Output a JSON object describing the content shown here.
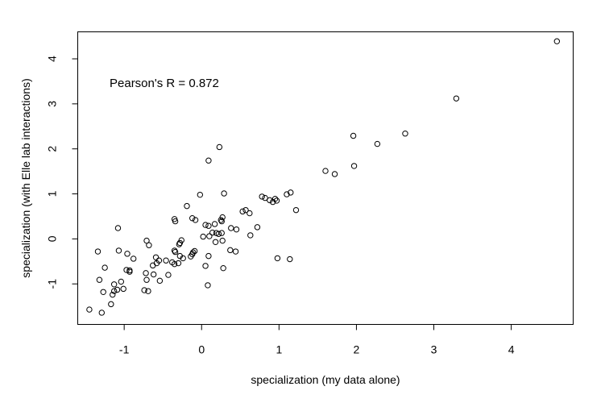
{
  "chart_data": {
    "type": "scatter",
    "title": "",
    "xlabel": "specialization (my data alone)",
    "ylabel": "specialization (with Elle lab interactions)",
    "annotation": "Pearson's R = 0.872",
    "xlim": [
      -1.6,
      4.8
    ],
    "ylim": [
      -1.9,
      4.6
    ],
    "x_ticks": [
      -1,
      0,
      1,
      2,
      3,
      4
    ],
    "y_ticks": [
      -1,
      0,
      1,
      2,
      3,
      4
    ],
    "x_tick_labels": [
      "-1",
      "0",
      "1",
      "2",
      "3",
      "4"
    ],
    "y_tick_labels": [
      "-1",
      "0",
      "1",
      "2",
      "3",
      "4"
    ],
    "marker": "open-circle",
    "grid": false,
    "points": [
      [
        4.59,
        4.39
      ],
      [
        3.29,
        3.12
      ],
      [
        2.63,
        2.34
      ],
      [
        2.27,
        2.11
      ],
      [
        1.96,
        2.29
      ],
      [
        1.97,
        1.62
      ],
      [
        1.6,
        1.51
      ],
      [
        1.72,
        1.44
      ],
      [
        0.23,
        2.04
      ],
      [
        0.09,
        1.74
      ],
      [
        1.15,
        1.03
      ],
      [
        1.1,
        0.99
      ],
      [
        0.95,
        0.89
      ],
      [
        0.78,
        0.94
      ],
      [
        0.82,
        0.91
      ],
      [
        0.88,
        0.86
      ],
      [
        0.92,
        0.82
      ],
      [
        0.97,
        0.85
      ],
      [
        0.29,
        1.01
      ],
      [
        -0.02,
        0.98
      ],
      [
        1.22,
        0.64
      ],
      [
        0.53,
        0.61
      ],
      [
        0.57,
        0.64
      ],
      [
        0.62,
        0.57
      ],
      [
        -0.19,
        0.73
      ],
      [
        -0.12,
        0.46
      ],
      [
        -0.08,
        0.42
      ],
      [
        -0.35,
        0.44
      ],
      [
        -0.34,
        0.39
      ],
      [
        0.05,
        0.31
      ],
      [
        0.09,
        0.29
      ],
      [
        0.25,
        0.42
      ],
      [
        0.27,
        0.48
      ],
      [
        0.26,
        0.39
      ],
      [
        0.17,
        0.33
      ],
      [
        0.19,
        0.13
      ],
      [
        0.14,
        0.14
      ],
      [
        0.22,
        0.11
      ],
      [
        0.26,
        0.13
      ],
      [
        0.1,
        0.06
      ],
      [
        0.02,
        0.05
      ],
      [
        0.18,
        -0.07
      ],
      [
        0.27,
        -0.04
      ],
      [
        0.38,
        0.24
      ],
      [
        0.45,
        0.21
      ],
      [
        0.63,
        0.08
      ],
      [
        0.72,
        0.26
      ],
      [
        -0.26,
        -0.03
      ],
      [
        -0.28,
        -0.09
      ],
      [
        -0.29,
        -0.12
      ],
      [
        -1.08,
        0.24
      ],
      [
        -0.71,
        -0.04
      ],
      [
        -0.68,
        -0.14
      ],
      [
        -1.34,
        -0.28
      ],
      [
        -1.07,
        -0.26
      ],
      [
        -0.96,
        -0.33
      ],
      [
        -0.88,
        -0.44
      ],
      [
        -0.35,
        -0.26
      ],
      [
        -0.34,
        -0.29
      ],
      [
        -0.11,
        -0.3
      ],
      [
        -0.09,
        -0.27
      ],
      [
        -0.14,
        -0.39
      ],
      [
        -0.12,
        -0.34
      ],
      [
        0.37,
        -0.25
      ],
      [
        0.44,
        -0.28
      ],
      [
        0.98,
        -0.43
      ],
      [
        1.14,
        -0.45
      ],
      [
        0.09,
        -0.38
      ],
      [
        0.05,
        -0.6
      ],
      [
        0.28,
        -0.65
      ],
      [
        -0.59,
        -0.41
      ],
      [
        -0.55,
        -0.48
      ],
      [
        -0.58,
        -0.54
      ],
      [
        -0.63,
        -0.59
      ],
      [
        -0.46,
        -0.48
      ],
      [
        -0.38,
        -0.52
      ],
      [
        -0.35,
        -0.56
      ],
      [
        -0.3,
        -0.54
      ],
      [
        -0.28,
        -0.38
      ],
      [
        -0.24,
        -0.43
      ],
      [
        -0.97,
        -0.69
      ],
      [
        -0.93,
        -0.7
      ],
      [
        -0.93,
        -0.73
      ],
      [
        -1.25,
        -0.64
      ],
      [
        -0.62,
        -0.79
      ],
      [
        -0.72,
        -0.76
      ],
      [
        -0.43,
        -0.8
      ],
      [
        -0.54,
        -0.93
      ],
      [
        -1.32,
        -0.91
      ],
      [
        -1.04,
        -0.95
      ],
      [
        -0.71,
        -0.91
      ],
      [
        -0.74,
        -1.14
      ],
      [
        -0.69,
        -1.16
      ],
      [
        -1.13,
        -1.01
      ],
      [
        -1.09,
        -1.13
      ],
      [
        -1.13,
        -1.16
      ],
      [
        -1.01,
        -1.11
      ],
      [
        -1.27,
        -1.18
      ],
      [
        -1.15,
        -1.24
      ],
      [
        0.08,
        -1.03
      ],
      [
        -1.17,
        -1.45
      ],
      [
        -1.45,
        -1.57
      ],
      [
        -1.29,
        -1.64
      ]
    ]
  }
}
